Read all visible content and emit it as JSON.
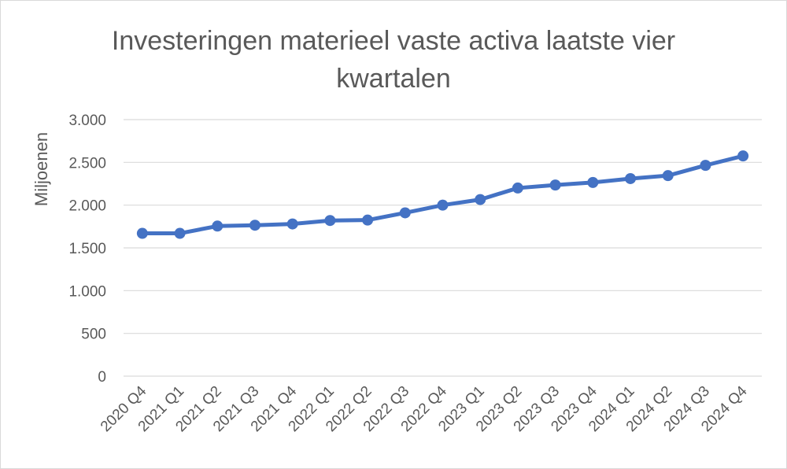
{
  "chart_data": {
    "type": "line",
    "title_lines": [
      "Investeringen materieel vaste activa laatste vier",
      "kwartalen"
    ],
    "xlabel": "",
    "ylabel": "Miljoenen",
    "categories": [
      "2020 Q4",
      "2021 Q1",
      "2021 Q2",
      "2021 Q3",
      "2021 Q4",
      "2022 Q1",
      "2022 Q2",
      "2022 Q3",
      "2022 Q4",
      "2023 Q1",
      "2023 Q2",
      "2023 Q3",
      "2023 Q4",
      "2024 Q1",
      "2024 Q2",
      "2024 Q3",
      "2024 Q4"
    ],
    "series": [
      {
        "values": [
          1670,
          1670,
          1755,
          1765,
          1780,
          1820,
          1825,
          1910,
          2000,
          2065,
          2200,
          2235,
          2265,
          2310,
          2345,
          2465,
          2575
        ],
        "color": "#4472c4"
      }
    ],
    "ylim": [
      0,
      3000
    ],
    "yticks": [
      0,
      500,
      1000,
      1500,
      2000,
      2500,
      3000
    ],
    "ytick_labels": [
      "0",
      "500",
      "1.000",
      "1.500",
      "2.000",
      "2.500",
      "3.000"
    ],
    "grid": true,
    "gridline_color": "#d9d9d9",
    "legend": "none"
  }
}
